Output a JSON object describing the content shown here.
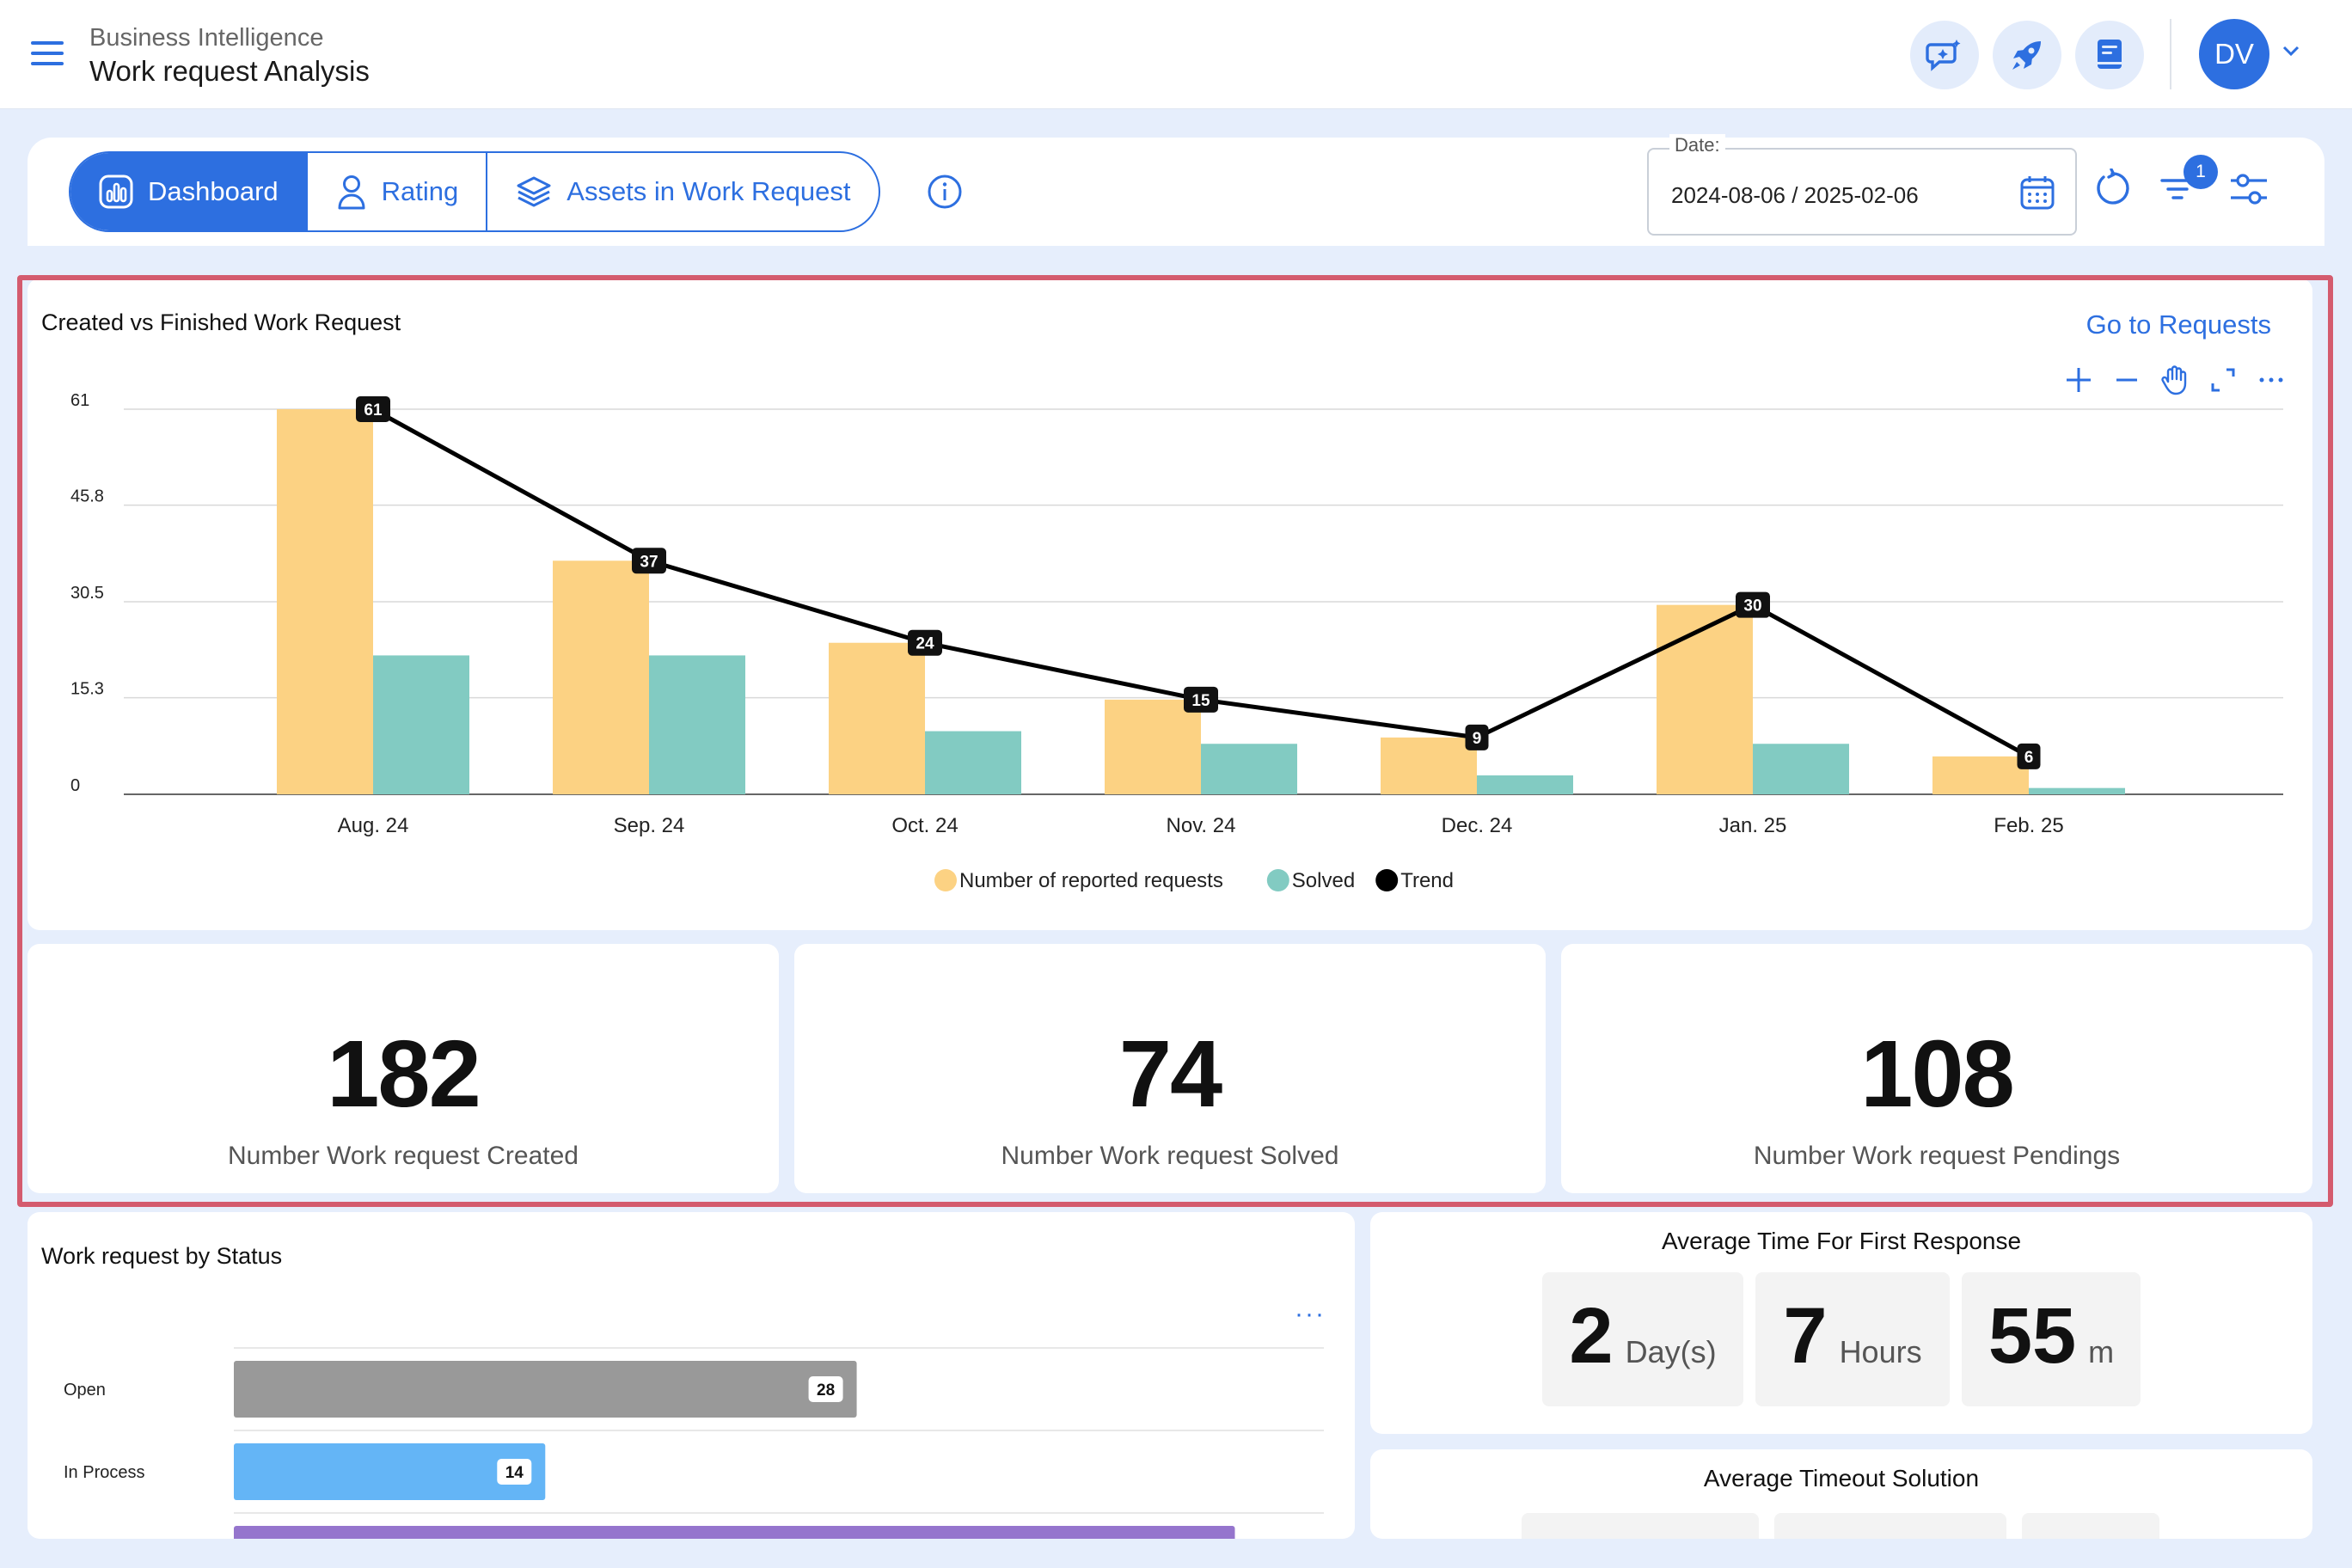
{
  "header": {
    "breadcrumb": "Business Intelligence",
    "title": "Work request Analysis",
    "avatar_initials": "DV"
  },
  "tabs": [
    {
      "label": "Dashboard",
      "icon": "chart-icon",
      "active": true
    },
    {
      "label": "Rating",
      "icon": "person-icon",
      "active": false
    },
    {
      "label": "Assets in Work Request",
      "icon": "layers-icon",
      "active": false
    }
  ],
  "filters": {
    "date_label": "Date:",
    "date_value": "2024-08-06 / 2025-02-06",
    "filter_badge": "1"
  },
  "chart_card": {
    "title": "Created vs Finished Work Request",
    "link": "Go to Requests"
  },
  "chart_data": {
    "type": "bar",
    "categories": [
      "Aug. 24",
      "Sep. 24",
      "Oct. 24",
      "Nov. 24",
      "Dec. 24",
      "Jan. 25",
      "Feb. 25"
    ],
    "series": [
      {
        "name": "Number of reported requests",
        "type": "bar",
        "color": "#fcd283",
        "values": [
          61,
          37,
          24,
          15,
          9,
          30,
          6
        ]
      },
      {
        "name": "Solved",
        "type": "bar",
        "color": "#82cbc2",
        "values": [
          22,
          22,
          10,
          8,
          3,
          8,
          1
        ]
      },
      {
        "name": "Trend",
        "type": "line",
        "color": "#000000",
        "values": [
          61,
          37,
          24,
          15,
          9,
          30,
          6
        ]
      }
    ],
    "y_ticks": [
      "0",
      "15.3",
      "30.5",
      "45.8",
      "61"
    ],
    "ylim": [
      0,
      61
    ],
    "grid": true,
    "legend_position": "bottom-center"
  },
  "kpis": [
    {
      "value": "182",
      "label": "Number Work request Created"
    },
    {
      "value": "74",
      "label": "Number Work request Solved"
    },
    {
      "value": "108",
      "label": "Number Work request Pendings"
    }
  ],
  "status_card": {
    "title": "Work request by Status",
    "more": "···",
    "rows": [
      {
        "label": "Open",
        "value": 28,
        "color": "#999999"
      },
      {
        "label": "In Process",
        "value": 14,
        "color": "#64b5f6"
      },
      {
        "label": "",
        "value": 45,
        "color": "#9575cd"
      }
    ],
    "max": 49
  },
  "first_response": {
    "title": "Average Time For First Response",
    "days": "2",
    "days_unit": "Day(s)",
    "hours": "7",
    "hours_unit": "Hours",
    "minutes": "55",
    "minutes_unit": "m"
  },
  "timeout_solution": {
    "title": "Average Timeout Solution"
  }
}
